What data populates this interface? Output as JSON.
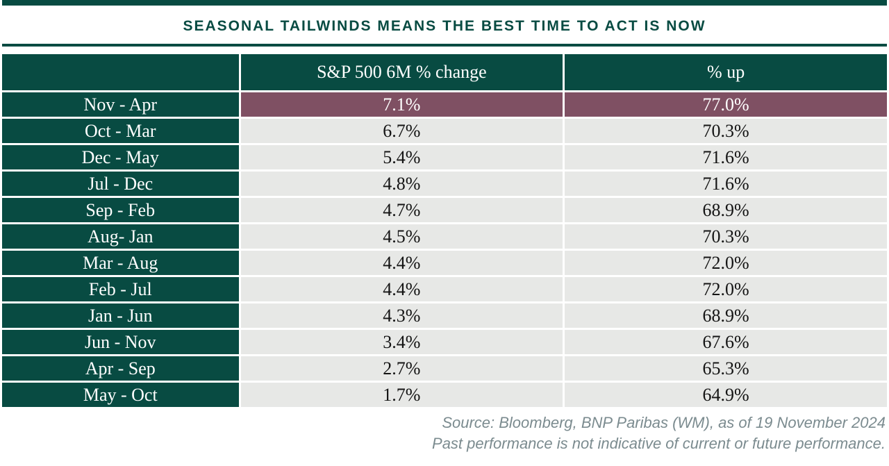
{
  "title": "SEASONAL TAILWINDS MEANS THE BEST TIME TO ACT IS NOW",
  "chart_data": {
    "type": "table",
    "title": "SEASONAL TAILWINDS MEANS THE BEST TIME TO ACT IS NOW",
    "columns": [
      "",
      "S&P 500 6M % change",
      "% up"
    ],
    "rows": [
      {
        "period": "Nov - Apr",
        "change": "7.1%",
        "pct_up": "77.0%",
        "highlight": true
      },
      {
        "period": "Oct - Mar",
        "change": "6.7%",
        "pct_up": "70.3%",
        "highlight": false
      },
      {
        "period": "Dec - May",
        "change": "5.4%",
        "pct_up": "71.6%",
        "highlight": false
      },
      {
        "period": "Jul - Dec",
        "change": "4.8%",
        "pct_up": "71.6%",
        "highlight": false
      },
      {
        "period": "Sep - Feb",
        "change": "4.7%",
        "pct_up": "68.9%",
        "highlight": false
      },
      {
        "period": "Aug- Jan",
        "change": "4.5%",
        "pct_up": "70.3%",
        "highlight": false
      },
      {
        "period": "Mar - Aug",
        "change": "4.4%",
        "pct_up": "72.0%",
        "highlight": false
      },
      {
        "period": "Feb - Jul",
        "change": "4.4%",
        "pct_up": "72.0%",
        "highlight": false
      },
      {
        "period": "Jan - Jun",
        "change": "4.3%",
        "pct_up": "68.9%",
        "highlight": false
      },
      {
        "period": "Jun - Nov",
        "change": "3.4%",
        "pct_up": "67.6%",
        "highlight": false
      },
      {
        "period": "Apr - Sep",
        "change": "2.7%",
        "pct_up": "65.3%",
        "highlight": false
      },
      {
        "period": "May - Oct",
        "change": "1.7%",
        "pct_up": "64.9%",
        "highlight": false
      }
    ]
  },
  "footer": {
    "line1": "Source: Bloomberg, BNP Paribas (WM), as of 19 November 2024",
    "line2": "Past performance is not indicative of current or future performance."
  },
  "colors": {
    "green": "#084b42",
    "maroon": "#7f5063",
    "cellgray": "#e7e8e6",
    "footgray": "#7b8b8f"
  }
}
